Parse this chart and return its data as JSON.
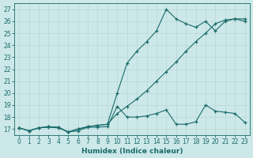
{
  "xlabel": "Humidex (Indice chaleur)",
  "background_color": "#cde8e8",
  "line_color": "#1a6b6b",
  "xlim": [
    -0.5,
    23.5
  ],
  "ylim": [
    16.5,
    27.5
  ],
  "yticks": [
    17,
    18,
    19,
    20,
    21,
    22,
    23,
    24,
    25,
    26,
    27
  ],
  "xticks": [
    0,
    1,
    2,
    3,
    4,
    5,
    6,
    7,
    8,
    9,
    10,
    11,
    12,
    13,
    14,
    15,
    16,
    17,
    18,
    19,
    20,
    21,
    22,
    23
  ],
  "series1_x": [
    0,
    1,
    2,
    3,
    4,
    5,
    6,
    7,
    8,
    9,
    10,
    11,
    12,
    13,
    14,
    15,
    16,
    17,
    18,
    19,
    20,
    21,
    22,
    23
  ],
  "series1_y": [
    17.1,
    16.85,
    17.1,
    17.15,
    17.1,
    16.75,
    16.85,
    17.15,
    17.15,
    17.2,
    18.9,
    18.0,
    18.0,
    18.1,
    18.3,
    18.6,
    17.4,
    17.4,
    17.6,
    19.0,
    18.5,
    18.4,
    18.3,
    17.55
  ],
  "series2_x": [
    0,
    1,
    2,
    3,
    4,
    5,
    6,
    7,
    8,
    9,
    10,
    11,
    12,
    13,
    14,
    15,
    16,
    17,
    18,
    19,
    20,
    21,
    22,
    23
  ],
  "series2_y": [
    17.1,
    16.85,
    17.1,
    17.2,
    17.15,
    16.75,
    17.0,
    17.2,
    17.3,
    17.4,
    18.3,
    18.9,
    19.5,
    20.2,
    21.0,
    21.8,
    22.6,
    23.5,
    24.3,
    25.0,
    25.8,
    26.1,
    26.2,
    26.2
  ],
  "series3_x": [
    0,
    1,
    2,
    3,
    4,
    5,
    6,
    7,
    8,
    9,
    10,
    11,
    12,
    13,
    14,
    15,
    16,
    17,
    18,
    19,
    20,
    21,
    22,
    23
  ],
  "series3_y": [
    17.1,
    16.85,
    17.1,
    17.2,
    17.15,
    16.75,
    17.0,
    17.2,
    17.3,
    17.4,
    20.0,
    22.5,
    23.5,
    24.3,
    25.2,
    27.0,
    26.2,
    25.8,
    25.5,
    26.0,
    25.2,
    26.0,
    26.2,
    26.0
  ],
  "grid_color": "#b8d8d8",
  "font_color": "#1a6b6b",
  "font_size_tick": 5.5,
  "font_size_label": 6.5
}
